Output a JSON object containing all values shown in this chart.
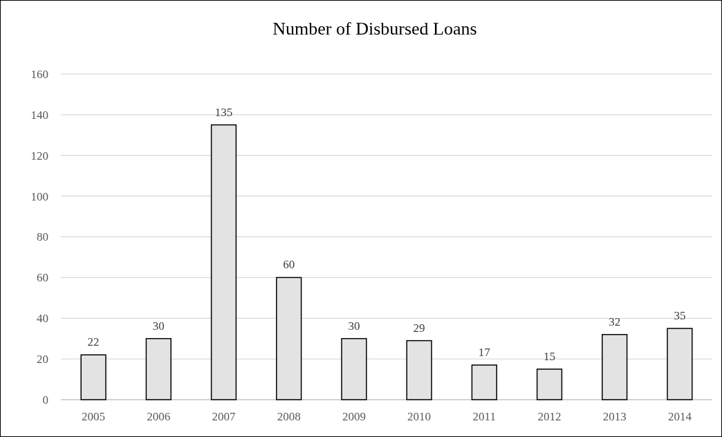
{
  "chart_data": {
    "type": "bar",
    "title": "Number of Disbursed Loans",
    "categories": [
      "2005",
      "2006",
      "2007",
      "2008",
      "2009",
      "2010",
      "2011",
      "2012",
      "2013",
      "2014"
    ],
    "values": [
      22,
      30,
      135,
      60,
      30,
      29,
      17,
      15,
      32,
      35
    ],
    "color": "#e3e3e3",
    "ylim": [
      0,
      160
    ],
    "yticks": [
      0,
      20,
      40,
      60,
      80,
      100,
      120,
      140,
      160
    ],
    "grid": "y",
    "data_labels": true
  }
}
